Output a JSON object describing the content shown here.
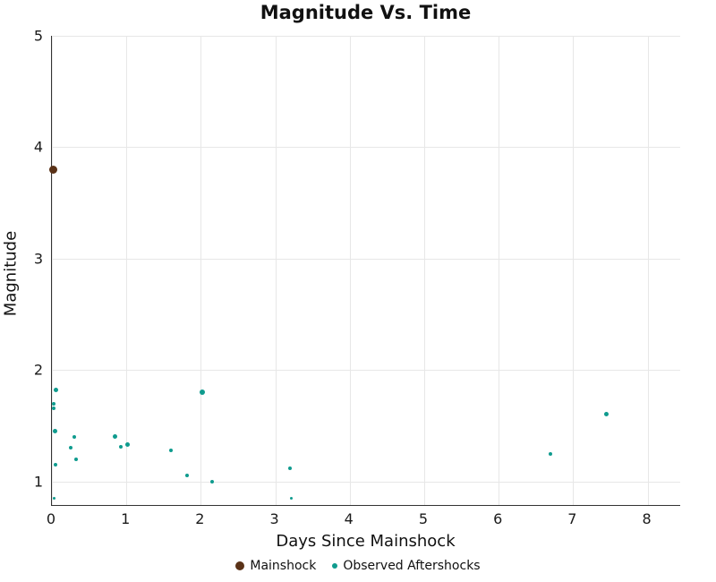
{
  "title": "Magnitude Vs. Time",
  "x_axis_label": "Days Since Mainshock",
  "y_axis_label": "Magnitude",
  "legend": {
    "mainshock_label": "Mainshock",
    "aftershocks_label": "Observed Aftershocks"
  },
  "colors": {
    "mainshock": "#5a3217",
    "aftershock": "#0f9b8e",
    "grid": "#e7e7e7",
    "axis": "#333333",
    "text": "#111111"
  },
  "chart_data": {
    "type": "scatter",
    "title": "Magnitude Vs. Time",
    "xlabel": "Days Since Mainshock",
    "ylabel": "Magnitude",
    "xlim": [
      0,
      8.45
    ],
    "ylim": [
      0.78,
      5
    ],
    "x_ticks": [
      0,
      1,
      2,
      3,
      4,
      5,
      6,
      7,
      8
    ],
    "y_ticks": [
      1,
      2,
      3,
      4,
      5
    ],
    "grid": true,
    "legend_position": "bottom",
    "series": [
      {
        "name": "Mainshock",
        "color": "#5a3217",
        "marker_size": 9,
        "points": [
          {
            "x": 0.02,
            "y": 3.8,
            "size": 9
          }
        ]
      },
      {
        "name": "Observed Aftershocks",
        "color": "#0f9b8e",
        "marker_size": 4,
        "points": [
          {
            "x": 0.05,
            "y": 1.82,
            "size": 5
          },
          {
            "x": 0.02,
            "y": 1.7,
            "size": 4
          },
          {
            "x": 0.02,
            "y": 1.66,
            "size": 4
          },
          {
            "x": 0.04,
            "y": 1.45,
            "size": 5
          },
          {
            "x": 0.05,
            "y": 1.15,
            "size": 4
          },
          {
            "x": 0.03,
            "y": 0.85,
            "size": 3
          },
          {
            "x": 0.25,
            "y": 1.3,
            "size": 4
          },
          {
            "x": 0.3,
            "y": 1.4,
            "size": 4
          },
          {
            "x": 0.32,
            "y": 1.2,
            "size": 4
          },
          {
            "x": 0.85,
            "y": 1.4,
            "size": 5
          },
          {
            "x": 0.92,
            "y": 1.31,
            "size": 4
          },
          {
            "x": 1.02,
            "y": 1.33,
            "size": 5
          },
          {
            "x": 1.6,
            "y": 1.28,
            "size": 4
          },
          {
            "x": 1.82,
            "y": 1.05,
            "size": 4
          },
          {
            "x": 2.02,
            "y": 1.8,
            "size": 6
          },
          {
            "x": 2.15,
            "y": 1.0,
            "size": 4
          },
          {
            "x": 3.2,
            "y": 1.12,
            "size": 4
          },
          {
            "x": 3.22,
            "y": 0.85,
            "size": 3
          },
          {
            "x": 6.7,
            "y": 1.25,
            "size": 4
          },
          {
            "x": 7.45,
            "y": 1.6,
            "size": 5
          }
        ]
      }
    ]
  }
}
